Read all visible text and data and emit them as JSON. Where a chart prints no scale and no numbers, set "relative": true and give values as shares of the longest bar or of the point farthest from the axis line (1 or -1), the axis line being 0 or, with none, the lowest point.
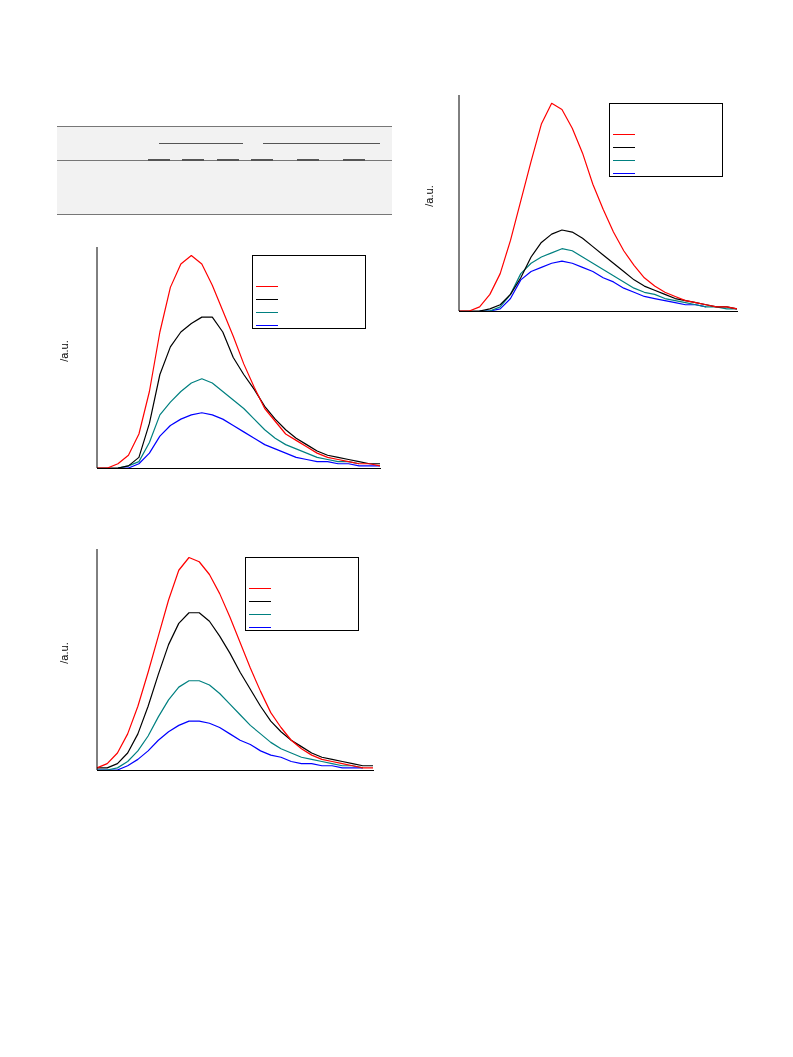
{
  "chart_data": [
    {
      "type": "line",
      "ylabel": "/a.u.",
      "relative": true,
      "tick_labels": false,
      "categories": [
        null,
        null,
        null,
        null,
        null,
        null,
        null,
        null,
        null,
        null,
        null,
        null,
        null,
        null,
        null,
        null,
        null,
        null,
        null,
        null,
        null,
        null,
        null,
        null,
        null,
        null,
        null,
        null
      ],
      "series": [
        {
          "color": "#ff0000",
          "values": [
            0,
            0,
            0.02,
            0.08,
            0.18,
            0.34,
            0.53,
            0.72,
            0.9,
            1,
            0.97,
            0.88,
            0.76,
            0.61,
            0.49,
            0.38,
            0.29,
            0.22,
            0.16,
            0.12,
            0.09,
            0.07,
            0.05,
            0.04,
            0.03,
            0.02,
            0.02,
            0.01
          ]
        },
        {
          "color": "#000000",
          "values": [
            0,
            0,
            0,
            0.01,
            0.03,
            0.08,
            0.16,
            0.26,
            0.33,
            0.37,
            0.39,
            0.38,
            0.35,
            0.31,
            0.27,
            0.23,
            0.19,
            0.15,
            0.12,
            0.1,
            0.08,
            0.06,
            0.05,
            0.04,
            0.03,
            0.02,
            0.02,
            0.01
          ]
        },
        {
          "color": "#008080",
          "values": [
            null,
            null,
            0,
            0,
            0.02,
            0.08,
            0.18,
            0.23,
            0.26,
            0.28,
            0.3,
            0.29,
            0.26,
            0.23,
            0.2,
            0.17,
            0.14,
            0.11,
            0.09,
            0.08,
            0.06,
            0.05,
            0.04,
            0.03,
            0.02,
            0.02,
            0.01,
            0.01
          ]
        },
        {
          "color": "#0000ff",
          "values": [
            null,
            null,
            0,
            0,
            0.01,
            0.06,
            0.15,
            0.19,
            0.21,
            0.23,
            0.24,
            0.23,
            0.21,
            0.19,
            0.16,
            0.14,
            0.11,
            0.09,
            0.07,
            0.06,
            0.05,
            0.04,
            0.03,
            0.03,
            0.02,
            null,
            null,
            null
          ]
        }
      ]
    },
    {
      "type": "line",
      "ylabel": "/a.u.",
      "relative": true,
      "tick_labels": false,
      "categories": [
        null,
        null,
        null,
        null,
        null,
        null,
        null,
        null,
        null,
        null,
        null,
        null,
        null,
        null,
        null,
        null,
        null,
        null,
        null,
        null,
        null,
        null,
        null,
        null,
        null,
        null,
        null,
        null
      ],
      "series": [
        {
          "color": "#ff0000",
          "values": [
            0,
            0,
            0.02,
            0.06,
            0.16,
            0.36,
            0.64,
            0.85,
            0.96,
            1,
            0.96,
            0.86,
            0.74,
            0.62,
            0.49,
            0.38,
            0.28,
            0.22,
            0.16,
            0.13,
            0.1,
            0.07,
            0.05,
            0.04,
            0.03,
            0.02,
            0.02,
            0.01
          ]
        },
        {
          "color": "#000000",
          "values": [
            0,
            0,
            0,
            0.01,
            0.05,
            0.21,
            0.44,
            0.57,
            0.64,
            0.68,
            0.71,
            0.71,
            0.64,
            0.52,
            0.44,
            0.37,
            0.29,
            0.23,
            0.18,
            0.14,
            0.11,
            0.08,
            0.06,
            0.05,
            0.04,
            0.03,
            0.02,
            0.02
          ]
        },
        {
          "color": "#008080",
          "values": [
            null,
            null,
            0,
            0.01,
            0.03,
            0.12,
            0.25,
            0.31,
            0.36,
            0.4,
            0.42,
            0.4,
            0.36,
            0.32,
            0.28,
            0.23,
            0.18,
            0.14,
            0.11,
            0.09,
            0.07,
            0.05,
            0.04,
            0.03,
            0.03,
            0.02,
            null,
            null
          ]
        },
        {
          "color": "#0000ff",
          "values": [
            null,
            null,
            0,
            0,
            0.02,
            0.07,
            0.15,
            0.2,
            0.23,
            0.25,
            0.26,
            0.25,
            0.23,
            0.2,
            0.17,
            0.14,
            0.11,
            0.09,
            0.07,
            0.05,
            0.04,
            0.03,
            0.03,
            0.02,
            0.02,
            0.01,
            0.01,
            0.01
          ]
        }
      ]
    },
    {
      "type": "line",
      "ylabel": "/a.u.",
      "relative": true,
      "tick_labels": false,
      "categories": [
        null,
        null,
        null,
        null,
        null,
        null,
        null,
        null,
        null,
        null,
        null,
        null,
        null,
        null,
        null,
        null,
        null,
        null,
        null,
        null,
        null,
        null,
        null,
        null,
        null,
        null,
        null,
        null
      ],
      "series": [
        {
          "color": "#ff0000",
          "values": [
            0.01,
            0.03,
            0.08,
            0.17,
            0.3,
            0.46,
            0.63,
            0.8,
            0.94,
            1,
            0.98,
            0.92,
            0.83,
            0.72,
            0.6,
            0.48,
            0.37,
            0.27,
            0.2,
            0.14,
            0.1,
            0.07,
            0.05,
            0.04,
            0.03,
            0.02,
            0.01,
            0.01
          ]
        },
        {
          "color": "#000000",
          "values": [
            0.01,
            0.01,
            0.03,
            0.08,
            0.17,
            0.3,
            0.45,
            0.59,
            0.69,
            0.74,
            0.74,
            0.7,
            0.63,
            0.55,
            0.46,
            0.38,
            0.3,
            0.23,
            0.18,
            0.14,
            0.11,
            0.08,
            0.06,
            0.05,
            0.04,
            0.03,
            0.02,
            0.02
          ]
        },
        {
          "color": "#008080",
          "values": [
            0,
            0,
            0.01,
            0.04,
            0.09,
            0.16,
            0.25,
            0.33,
            0.39,
            0.42,
            0.42,
            0.4,
            0.36,
            0.31,
            0.26,
            0.21,
            0.17,
            0.13,
            0.1,
            0.08,
            0.06,
            0.05,
            0.04,
            0.03,
            0.02,
            0.02,
            0.01,
            null
          ]
        },
        {
          "color": "#0000ff",
          "values": [
            0,
            0,
            0,
            0.02,
            0.05,
            0.09,
            0.14,
            0.18,
            0.21,
            0.23,
            0.23,
            0.22,
            0.2,
            0.17,
            0.14,
            0.12,
            0.09,
            0.07,
            0.06,
            0.04,
            0.03,
            0.03,
            0.02,
            0.02,
            0.01,
            0.01,
            0.01,
            null
          ]
        }
      ]
    }
  ]
}
